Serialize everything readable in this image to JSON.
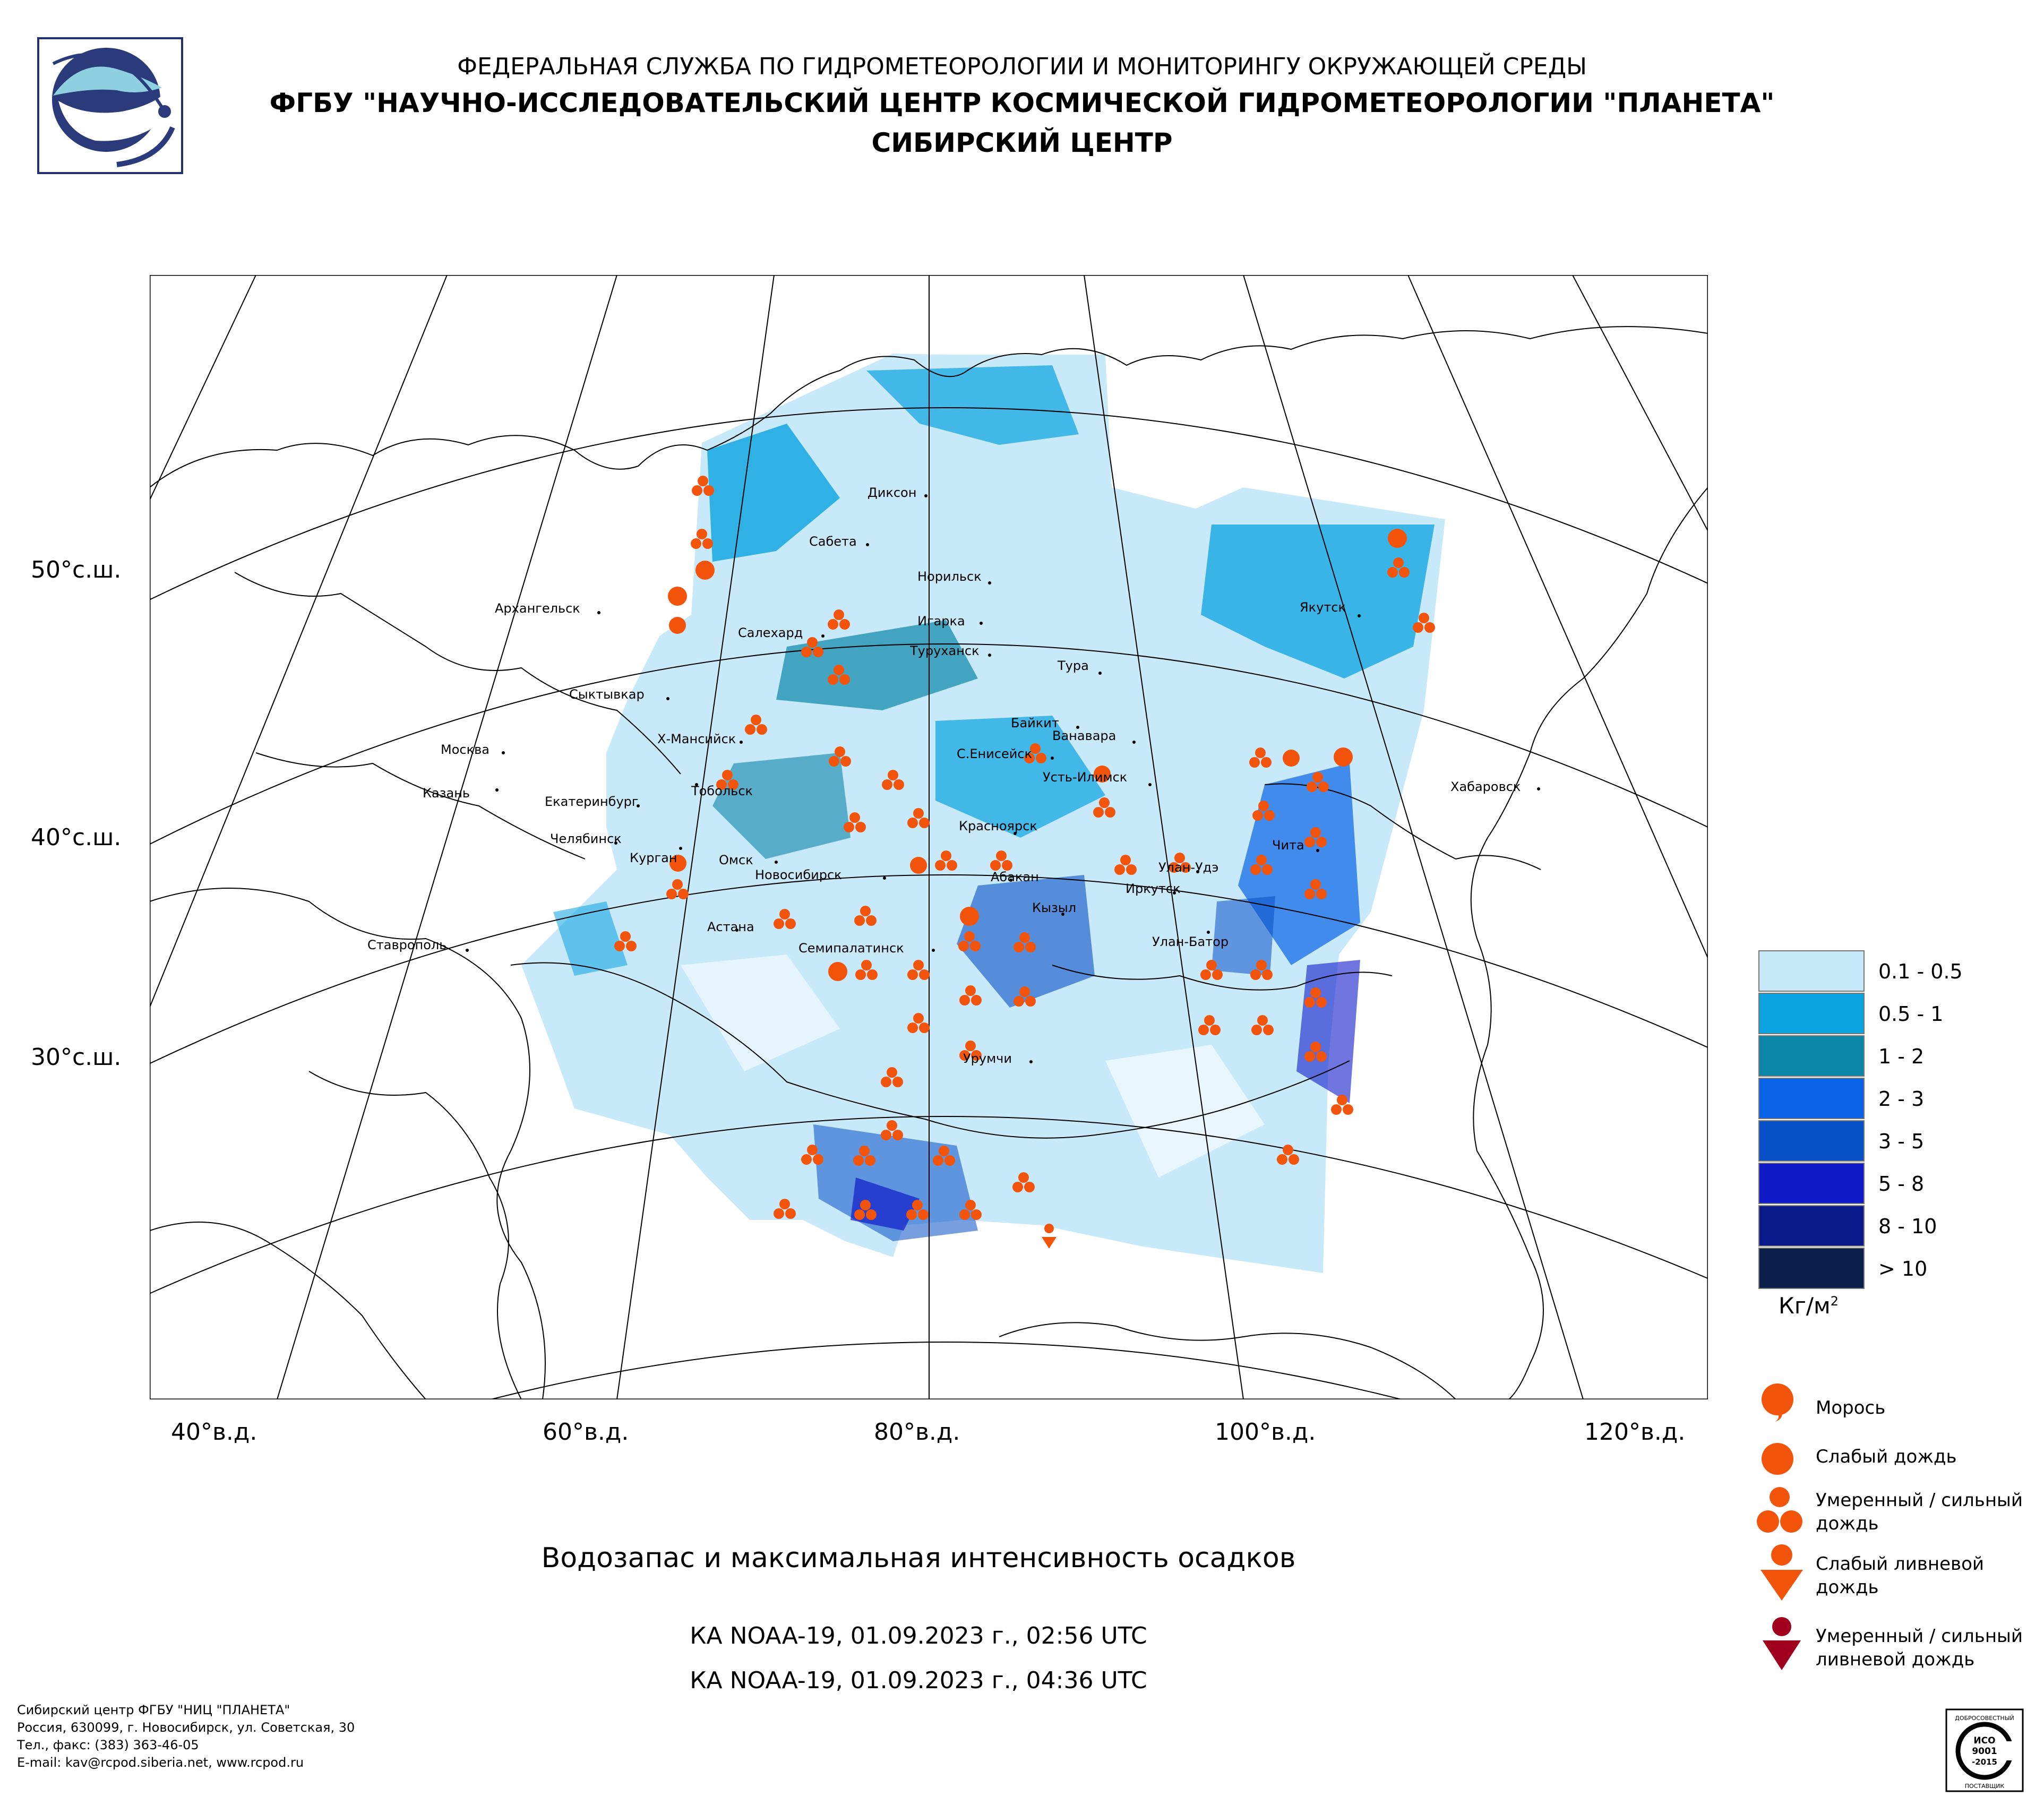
{
  "header": {
    "line1": "ФЕДЕРАЛЬНАЯ СЛУЖБА ПО ГИДРОМЕТЕОРОЛОГИИ И МОНИТОРИНГУ ОКРУЖАЮЩЕЙ СРЕДЫ",
    "line2": "ФГБУ \"НАУЧНО-ИССЛЕДОВАТЕЛЬСКИЙ ЦЕНТР КОСМИЧЕСКОЙ ГИДРОМЕТЕОРОЛОГИИ \"ПЛАНЕТА\"",
    "line3": "СИБИРСКИЙ ЦЕНТР"
  },
  "map": {
    "lat_labels": [
      "50°с.ш.",
      "40°с.ш.",
      "30°с.ш."
    ],
    "lon_labels": [
      "40°в.д.",
      "60°в.д.",
      "80°в.д.",
      "100°в.д.",
      "120°в.д."
    ],
    "cities": {
      "dikson": "Диксон",
      "sabeta": "Сабета",
      "norilsk": "Норильск",
      "igarka": "Игарка",
      "salekhard": "Салехард",
      "turukhansk": "Туруханск",
      "tura": "Тура",
      "arkhangelsk": "Архангельск",
      "syktyvkar": "Сыктывкар",
      "yakutsk": "Якутск",
      "baykit": "Байкит",
      "vanavara": "Ванавара",
      "khmansiysk": "Х-Мансийск",
      "seniseysk": "С.Енисейск",
      "moskva": "Москва",
      "ustilimsk": "Усть-Илимск",
      "kazan": "Казань",
      "ekaterinburg": "Екатеринбург",
      "tobolsk": "Тобольск",
      "khabarovsk": "Хабаровск",
      "krasnoyarsk": "Красноярск",
      "chelyabinsk": "Челябинск",
      "kurgan": "Курган",
      "omsk": "Омск",
      "novosibirsk": "Новосибирск",
      "chita": "Чита",
      "abakan": "Абакан",
      "ulanude": "Улан-Удэ",
      "irkutsk": "Иркутск",
      "kyzyl": "Кызыл",
      "astana": "Астана",
      "ulanbator": "Улан-Батор",
      "stavropol": "Ставрополь",
      "semipalatinsk": "Семипалатинск",
      "urumchi": "Урумчи"
    }
  },
  "legend": {
    "classes": [
      {
        "label": "0.1 - 0.5",
        "color": "#c7e9fa"
      },
      {
        "label": "0.5 - 1",
        "color": "#0aa2e0"
      },
      {
        "label": "1 - 2",
        "color": "#0c86a8"
      },
      {
        "label": "2 - 3",
        "color": "#0863e6"
      },
      {
        "label": "3 - 5",
        "color": "#0850c6"
      },
      {
        "label": "5 - 8",
        "color": "#0f1bc9"
      },
      {
        "label": "8 - 10",
        "color": "#0b1a8a"
      },
      {
        "label": "> 10",
        "color": "#0a1f4a"
      }
    ],
    "units": "Кг/м",
    "units_sup": "2",
    "symbols": {
      "drizzle": "Морось",
      "light_rain": "Слабый дождь",
      "moderate_rain": "Умеренный / сильный дождь",
      "light_shower": "Слабый ливневой дождь",
      "heavy_shower": "Умеренный / сильный ливневой дождь"
    },
    "symbol_color": "#f2540c",
    "heavy_color": "#a0001e"
  },
  "title": "Водозапас и максимальная интенсивность осадков",
  "passes": [
    "КА NOAA-19, 01.09.2023 г., 02:56 UTC",
    "КА NOAA-19, 01.09.2023 г., 04:36 UTC"
  ],
  "footer": {
    "org_line1": "Сибирский центр ФГБУ \"НИЦ \"ПЛАНЕТА\"",
    "org_line2": "Россия, 630099, г. Новосибирск, ул. Советская, 30",
    "org_line3": "Тел., факс: (383) 363-46-05",
    "org_line4": "E-mail: kav@rcpod.siberia.net, www.rcpod.ru",
    "iso_top": "ДОБРОСОВЕСТНЫЙ",
    "iso_mid1": "ИСО",
    "iso_mid2": "9001",
    "iso_mid3": "-2015",
    "iso_bottom": "ПОСТАВЩИК"
  }
}
